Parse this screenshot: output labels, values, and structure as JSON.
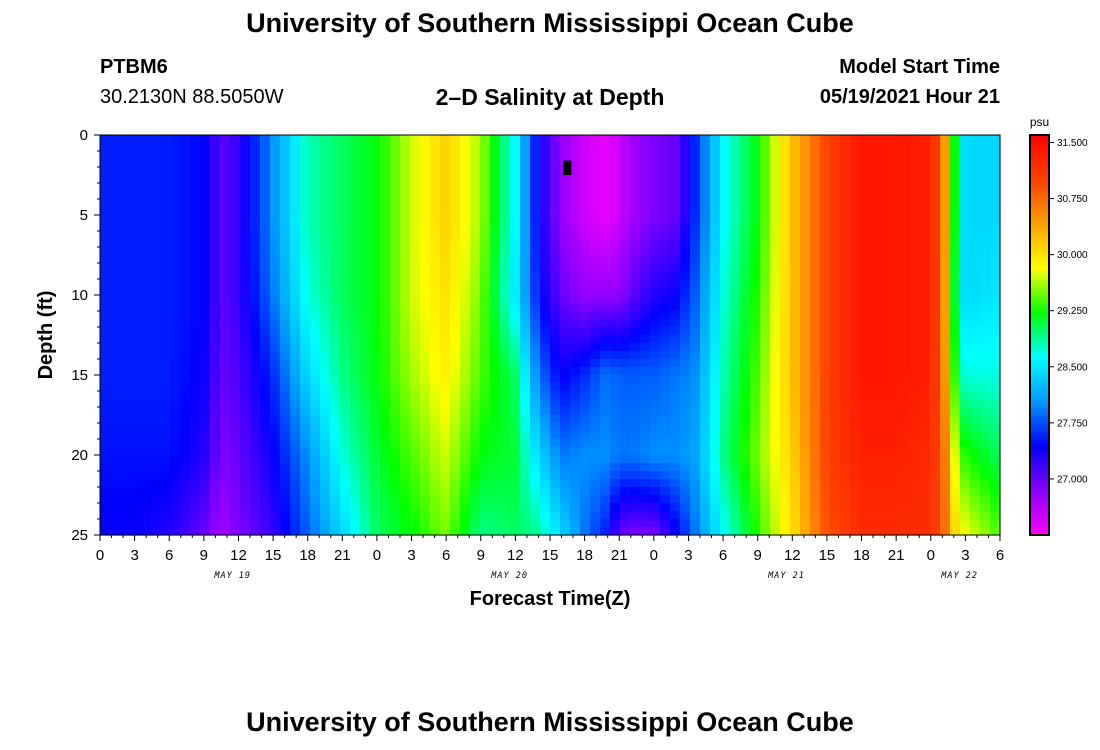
{
  "header": {
    "title": "University of Southern Mississippi Ocean Cube",
    "station": "PTBM6",
    "coordinates": "30.2130N  88.5050W",
    "subtitle": "2–D Salinity at Depth",
    "model_start_label": "Model Start Time",
    "model_start_value": "05/19/2021 Hour 21"
  },
  "footer": {
    "title": "University of Southern Mississippi Ocean Cube"
  },
  "chart_data": {
    "type": "heatmap",
    "title": "2–D Salinity at Depth",
    "xlabel": "Forecast Time(Z)",
    "ylabel": "Depth (ft)",
    "xlim": [
      0,
      78
    ],
    "ylim": [
      0,
      25
    ],
    "y_reversed": true,
    "x_ticks": [
      0,
      3,
      6,
      9,
      12,
      15,
      18,
      21,
      24,
      27,
      30,
      33,
      36,
      39,
      42,
      45,
      48,
      51,
      54,
      57,
      60,
      63,
      66,
      69,
      72,
      75,
      78
    ],
    "x_tick_labels": [
      "0",
      "3",
      "6",
      "9",
      "12",
      "15",
      "18",
      "21",
      "0",
      "3",
      "6",
      "9",
      "12",
      "15",
      "18",
      "21",
      "0",
      "3",
      "6",
      "9",
      "12",
      "15",
      "18",
      "21",
      "0",
      "3",
      "6"
    ],
    "y_ticks": [
      0,
      5,
      10,
      15,
      20,
      25
    ],
    "y_tick_labels": [
      "0",
      "5",
      "10",
      "15",
      "20",
      "25"
    ],
    "date_labels": [
      {
        "text": "MAY 19",
        "x": 11.5
      },
      {
        "text": "MAY 20",
        "x": 35.5
      },
      {
        "text": "MAY 21",
        "x": 59.5
      },
      {
        "text": "MAY 22",
        "x": 74.5
      }
    ],
    "colorbar": {
      "unit": "psu",
      "min": 26.25,
      "max": 31.6,
      "tick_values": [
        31.5,
        30.75,
        30.0,
        29.25,
        28.5,
        27.75,
        27.0
      ],
      "tick_labels": [
        "31.500",
        "30.750",
        "30.000",
        "29.250",
        "28.500",
        "27.750",
        "27.000"
      ],
      "colors": [
        "#ff00ff",
        "#8a00ff",
        "#0000ff",
        "#0099ff",
        "#00ffff",
        "#00ff00",
        "#ffff00",
        "#ffa000",
        "#ff4000",
        "#ff0000"
      ]
    },
    "profile_x": [
      0,
      3,
      6,
      9,
      12,
      15,
      18,
      21,
      24,
      27,
      30,
      33,
      36,
      39,
      42,
      45,
      48,
      51,
      54,
      57,
      60,
      63,
      66,
      69,
      72,
      75,
      78
    ],
    "profile_depth": [
      0,
      5,
      10,
      15,
      20,
      25
    ],
    "salinity": [
      [
        27.55,
        27.55,
        27.55,
        27.55,
        27.5,
        27.4
      ],
      [
        27.55,
        27.55,
        27.55,
        27.55,
        27.5,
        27.4
      ],
      [
        27.55,
        27.55,
        27.55,
        27.55,
        27.5,
        27.3
      ],
      [
        27.45,
        27.45,
        27.45,
        27.4,
        27.3,
        27.0
      ],
      [
        27.05,
        27.05,
        27.05,
        27.0,
        26.9,
        26.7
      ],
      [
        27.2,
        27.2,
        27.2,
        27.1,
        27.0,
        26.9
      ],
      [
        28.0,
        28.0,
        27.9,
        27.6,
        27.4,
        27.2
      ],
      [
        28.8,
        28.8,
        28.7,
        28.4,
        28.0,
        27.8
      ],
      [
        29.0,
        29.0,
        29.0,
        28.9,
        28.7,
        28.4
      ],
      [
        29.2,
        29.2,
        29.2,
        29.2,
        29.1,
        29.0
      ],
      [
        29.7,
        29.7,
        29.7,
        29.6,
        29.4,
        29.2
      ],
      [
        30.1,
        30.1,
        30.0,
        29.9,
        29.7,
        29.5
      ],
      [
        29.6,
        29.6,
        29.5,
        29.4,
        29.2,
        28.9
      ],
      [
        28.6,
        28.6,
        28.5,
        29.0,
        29.1,
        29.0
      ],
      [
        27.4,
        27.4,
        27.5,
        27.9,
        28.4,
        28.9
      ],
      [
        26.8,
        26.8,
        27.0,
        27.4,
        27.9,
        28.4
      ],
      [
        26.5,
        26.5,
        26.8,
        27.6,
        28.0,
        27.9
      ],
      [
        26.35,
        26.35,
        26.8,
        27.9,
        28.0,
        27.5
      ],
      [
        26.5,
        26.5,
        26.8,
        27.8,
        27.9,
        27.0
      ],
      [
        26.7,
        26.7,
        27.0,
        27.8,
        27.9,
        26.9
      ],
      [
        26.9,
        26.9,
        27.3,
        27.8,
        28.0,
        26.9
      ],
      [
        27.0,
        27.0,
        27.4,
        27.9,
        28.0,
        27.4
      ],
      [
        27.6,
        27.6,
        27.8,
        28.0,
        28.1,
        27.9
      ],
      [
        28.6,
        28.6,
        28.7,
        28.8,
        28.9,
        28.6
      ],
      [
        29.2,
        29.2,
        29.3,
        29.4,
        29.5,
        29.3
      ],
      [
        30.2,
        30.2,
        30.2,
        30.2,
        30.1,
        30.0
      ],
      [
        31.0,
        31.0,
        31.0,
        31.0,
        31.0,
        30.9
      ],
      [
        31.4,
        31.4,
        31.4,
        31.4,
        31.3,
        31.2
      ],
      [
        31.4,
        31.4,
        31.4,
        31.4,
        31.3,
        31.2
      ],
      [
        31.3,
        31.3,
        31.3,
        31.3,
        31.2,
        31.2
      ],
      [
        30.8,
        30.8,
        30.8,
        30.8,
        30.9,
        30.9
      ],
      [
        29.3,
        29.3,
        29.2,
        29.4,
        29.8,
        30.1
      ],
      [
        28.4,
        28.4,
        28.4,
        28.7,
        29.3,
        29.8
      ],
      [
        28.4,
        28.4,
        28.5,
        28.7,
        29.0,
        29.4
      ]
    ],
    "salinity_x": [
      0,
      3,
      6,
      9,
      10.5,
      12,
      15,
      18,
      21,
      24,
      27,
      30,
      33,
      36,
      38,
      40,
      42,
      44,
      45,
      46,
      48,
      50,
      51.6,
      54,
      57,
      60,
      63,
      66,
      69,
      72,
      73,
      74,
      75,
      78
    ],
    "marker": {
      "x": 40.5,
      "y1": 1.6,
      "y2": 2.5,
      "color": "#000000"
    }
  }
}
